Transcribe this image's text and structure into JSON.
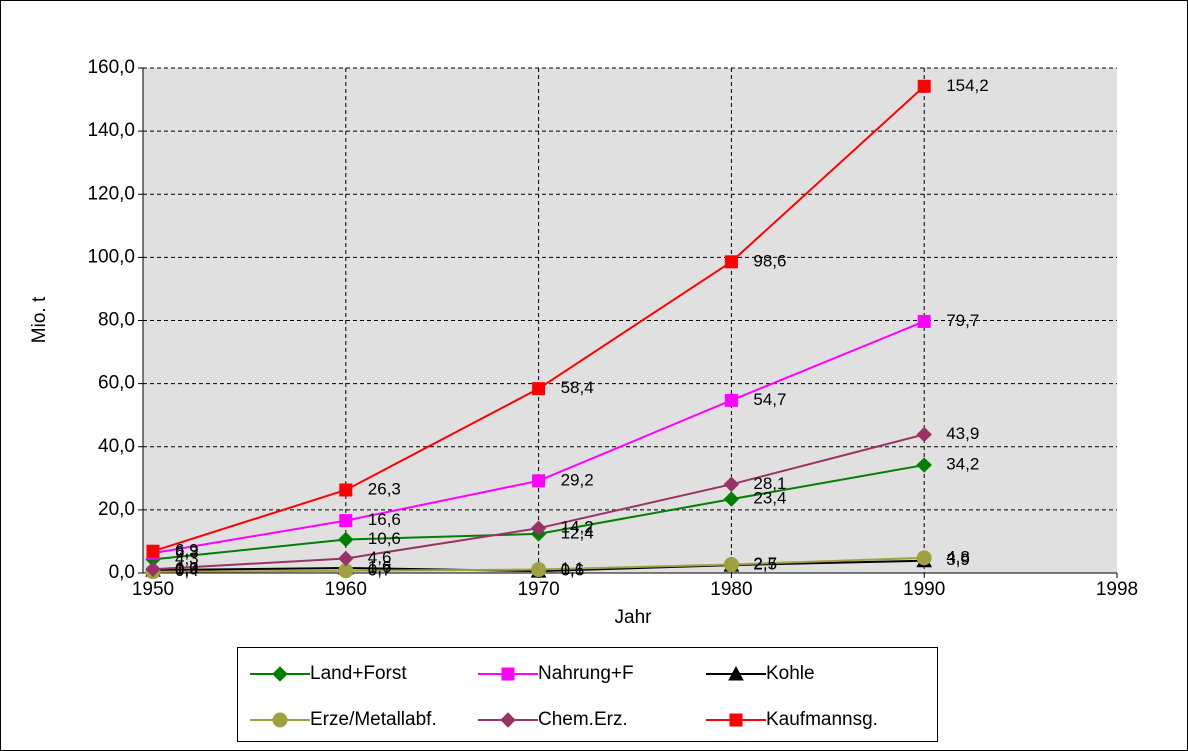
{
  "chart_data": {
    "type": "line",
    "x_label": "Jahr",
    "y_label": "Mio. t",
    "categories": [
      "1950",
      "1960",
      "1970",
      "1980",
      "1990",
      "1998"
    ],
    "series": [
      {
        "name": "Land+Forst",
        "color": "#008000",
        "marker": "diamond",
        "values": [
          4.3,
          10.6,
          12.4,
          23.4,
          34.2,
          null
        ],
        "value_labels": [
          "4,3",
          "10,6",
          "12,4",
          "23,4",
          "34,2",
          null
        ]
      },
      {
        "name": "Nahrung+F",
        "color": "#ff00ff",
        "marker": "square",
        "values": [
          6.3,
          16.6,
          29.2,
          54.7,
          79.7,
          null
        ],
        "value_labels": [
          "6,3",
          "16,6",
          "29,2",
          "54,7",
          "79,7",
          null
        ]
      },
      {
        "name": "Kohle",
        "color": "#000000",
        "marker": "triangle",
        "values": [
          0.9,
          1.6,
          0.6,
          2.5,
          3.9,
          null
        ],
        "value_labels": [
          "0,9",
          "1,6",
          "0,6",
          "2,5",
          "3,9",
          null
        ]
      },
      {
        "name": "Erze/Metallabf.",
        "color": "#a0a040",
        "marker": "circle",
        "values": [
          0.4,
          0.7,
          1.1,
          2.7,
          4.8,
          null
        ],
        "value_labels": [
          "0,4",
          "0,7",
          "1,1",
          "2,7",
          "4,8",
          null
        ]
      },
      {
        "name": "Chem.Erz.",
        "color": "#993366",
        "marker": "diamond",
        "values": [
          1.2,
          4.6,
          14.2,
          28.1,
          43.9,
          null
        ],
        "value_labels": [
          "1,2",
          "4,6",
          "14,2",
          "28,1",
          "43,9",
          null
        ]
      },
      {
        "name": "Kaufmannsg.",
        "color": "#ff0000",
        "marker": "square",
        "values": [
          6.9,
          26.3,
          58.4,
          98.6,
          154.2,
          null
        ],
        "value_labels": [
          "6,9",
          "26,3",
          "58,4",
          "98,6",
          "154,2",
          null
        ]
      }
    ],
    "ylim": [
      0,
      160
    ],
    "yticks": [
      {
        "value": 0,
        "label": "0,0"
      },
      {
        "value": 20,
        "label": "20,0"
      },
      {
        "value": 40,
        "label": "40,0"
      },
      {
        "value": 60,
        "label": "60,0"
      },
      {
        "value": 80,
        "label": "80,0"
      },
      {
        "value": 100,
        "label": "100,0"
      },
      {
        "value": 120,
        "label": "120,0"
      },
      {
        "value": 140,
        "label": "140,0"
      },
      {
        "value": 160,
        "label": "160,0"
      }
    ],
    "grid": true,
    "legend": "bottom"
  }
}
